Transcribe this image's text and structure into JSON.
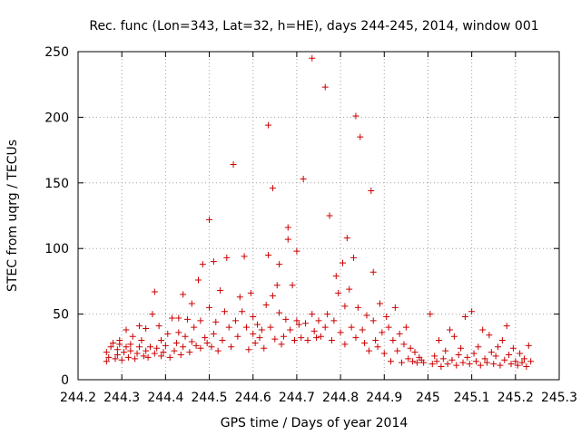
{
  "chart_data": {
    "type": "scatter",
    "title": "Rec. func (Lon=343, Lat=32, h=HE), days 244-245, 2014, window 001",
    "xlabel": "GPS time / Days of year 2014",
    "ylabel": "STEC from uqrg / TECUs",
    "xlim": [
      244.2,
      245.3
    ],
    "ylim": [
      0,
      250
    ],
    "xticks": [
      "244.2",
      "244.3",
      "244.4",
      "244.5",
      "244.6",
      "244.7",
      "244.8",
      "244.9",
      "245",
      "245.1",
      "245.2",
      "245.3"
    ],
    "yticks": [
      "0",
      "50",
      "100",
      "150",
      "200",
      "250"
    ],
    "grid": true,
    "legend": "none",
    "marker": "plus",
    "color": "#cc0000",
    "points": [
      [
        244.265,
        14
      ],
      [
        244.27,
        17
      ],
      [
        244.265,
        21
      ],
      [
        244.275,
        25
      ],
      [
        244.28,
        28
      ],
      [
        244.285,
        16
      ],
      [
        244.29,
        19
      ],
      [
        244.29,
        23
      ],
      [
        244.295,
        27
      ],
      [
        244.295,
        30
      ],
      [
        244.3,
        15
      ],
      [
        244.305,
        21
      ],
      [
        244.31,
        25
      ],
      [
        244.31,
        38
      ],
      [
        244.315,
        17
      ],
      [
        244.32,
        22
      ],
      [
        244.32,
        27
      ],
      [
        244.325,
        33
      ],
      [
        244.33,
        16
      ],
      [
        244.335,
        20
      ],
      [
        244.34,
        25
      ],
      [
        244.34,
        41
      ],
      [
        244.345,
        30
      ],
      [
        244.35,
        18
      ],
      [
        244.355,
        22
      ],
      [
        244.355,
        39
      ],
      [
        244.36,
        17
      ],
      [
        244.365,
        25
      ],
      [
        244.37,
        50
      ],
      [
        244.375,
        20
      ],
      [
        244.375,
        67
      ],
      [
        244.38,
        24
      ],
      [
        244.385,
        41
      ],
      [
        244.39,
        18
      ],
      [
        244.39,
        30
      ],
      [
        244.395,
        21
      ],
      [
        244.4,
        26
      ],
      [
        244.405,
        35
      ],
      [
        244.41,
        17
      ],
      [
        244.415,
        47
      ],
      [
        244.42,
        22
      ],
      [
        244.425,
        28
      ],
      [
        244.43,
        36
      ],
      [
        244.43,
        47
      ],
      [
        244.435,
        19
      ],
      [
        244.44,
        25
      ],
      [
        244.44,
        65
      ],
      [
        244.445,
        33
      ],
      [
        244.45,
        46
      ],
      [
        244.455,
        21
      ],
      [
        244.46,
        29
      ],
      [
        244.46,
        58
      ],
      [
        244.465,
        40
      ],
      [
        244.47,
        26
      ],
      [
        244.475,
        76
      ],
      [
        244.48,
        24
      ],
      [
        244.48,
        45
      ],
      [
        244.485,
        88
      ],
      [
        244.49,
        32
      ],
      [
        244.495,
        28
      ],
      [
        244.5,
        122
      ],
      [
        244.5,
        55
      ],
      [
        244.505,
        25
      ],
      [
        244.51,
        35
      ],
      [
        244.51,
        90
      ],
      [
        244.515,
        44
      ],
      [
        244.52,
        22
      ],
      [
        244.525,
        68
      ],
      [
        244.53,
        30
      ],
      [
        244.535,
        52
      ],
      [
        244.54,
        93
      ],
      [
        244.545,
        40
      ],
      [
        244.55,
        25
      ],
      [
        244.555,
        164
      ],
      [
        244.56,
        45
      ],
      [
        244.565,
        33
      ],
      [
        244.57,
        63
      ],
      [
        244.575,
        52
      ],
      [
        244.58,
        94
      ],
      [
        244.585,
        40
      ],
      [
        244.59,
        23
      ],
      [
        244.595,
        66
      ],
      [
        244.6,
        35
      ],
      [
        244.6,
        48
      ],
      [
        244.605,
        28
      ],
      [
        244.61,
        42
      ],
      [
        244.615,
        32
      ],
      [
        244.62,
        38
      ],
      [
        244.625,
        24
      ],
      [
        244.63,
        57
      ],
      [
        244.635,
        194
      ],
      [
        244.635,
        95
      ],
      [
        244.64,
        40
      ],
      [
        244.645,
        146
      ],
      [
        244.645,
        64
      ],
      [
        244.65,
        31
      ],
      [
        244.655,
        72
      ],
      [
        244.66,
        88
      ],
      [
        244.66,
        51
      ],
      [
        244.665,
        27
      ],
      [
        244.67,
        33
      ],
      [
        244.675,
        46
      ],
      [
        244.68,
        116
      ],
      [
        244.68,
        107
      ],
      [
        244.685,
        38
      ],
      [
        244.69,
        72
      ],
      [
        244.695,
        30
      ],
      [
        244.7,
        98
      ],
      [
        244.7,
        45
      ],
      [
        244.705,
        42
      ],
      [
        244.71,
        32
      ],
      [
        244.715,
        153
      ],
      [
        244.72,
        43
      ],
      [
        244.725,
        30
      ],
      [
        244.735,
        245
      ],
      [
        244.735,
        50
      ],
      [
        244.74,
        37
      ],
      [
        244.745,
        32
      ],
      [
        244.75,
        45
      ],
      [
        244.755,
        33
      ],
      [
        244.765,
        223
      ],
      [
        244.765,
        40
      ],
      [
        244.77,
        50
      ],
      [
        244.775,
        125
      ],
      [
        244.78,
        30
      ],
      [
        244.785,
        45
      ],
      [
        244.79,
        79
      ],
      [
        244.795,
        66
      ],
      [
        244.8,
        36
      ],
      [
        244.805,
        89
      ],
      [
        244.81,
        56
      ],
      [
        244.81,
        27
      ],
      [
        244.815,
        108
      ],
      [
        244.82,
        69
      ],
      [
        244.825,
        40
      ],
      [
        244.83,
        93
      ],
      [
        244.835,
        201
      ],
      [
        244.835,
        32
      ],
      [
        244.84,
        55
      ],
      [
        244.845,
        185
      ],
      [
        244.85,
        38
      ],
      [
        244.855,
        28
      ],
      [
        244.86,
        49
      ],
      [
        244.865,
        22
      ],
      [
        244.87,
        144
      ],
      [
        244.875,
        82
      ],
      [
        244.875,
        45
      ],
      [
        244.88,
        30
      ],
      [
        244.885,
        25
      ],
      [
        244.89,
        58
      ],
      [
        244.895,
        36
      ],
      [
        244.9,
        20
      ],
      [
        244.905,
        48
      ],
      [
        244.91,
        40
      ],
      [
        244.915,
        14
      ],
      [
        244.92,
        30
      ],
      [
        244.925,
        55
      ],
      [
        244.93,
        22
      ],
      [
        244.935,
        35
      ],
      [
        244.94,
        13
      ],
      [
        244.945,
        27
      ],
      [
        244.95,
        40
      ],
      [
        244.955,
        16
      ],
      [
        244.96,
        24
      ],
      [
        244.965,
        14
      ],
      [
        244.97,
        21
      ],
      [
        244.975,
        13
      ],
      [
        244.98,
        17
      ],
      [
        244.985,
        15
      ],
      [
        244.99,
        13
      ],
      [
        245.005,
        50
      ],
      [
        245.01,
        12
      ],
      [
        245.015,
        18
      ],
      [
        245.02,
        14
      ],
      [
        245.025,
        30
      ],
      [
        245.03,
        10
      ],
      [
        245.035,
        16
      ],
      [
        245.04,
        22
      ],
      [
        245.045,
        12
      ],
      [
        245.05,
        38
      ],
      [
        245.055,
        15
      ],
      [
        245.06,
        33
      ],
      [
        245.065,
        11
      ],
      [
        245.07,
        19
      ],
      [
        245.075,
        24
      ],
      [
        245.08,
        13
      ],
      [
        245.085,
        48
      ],
      [
        245.09,
        17
      ],
      [
        245.095,
        12
      ],
      [
        245.1,
        52
      ],
      [
        245.105,
        20
      ],
      [
        245.11,
        14
      ],
      [
        245.115,
        25
      ],
      [
        245.12,
        11
      ],
      [
        245.125,
        38
      ],
      [
        245.13,
        16
      ],
      [
        245.135,
        13
      ],
      [
        245.14,
        34
      ],
      [
        245.145,
        21
      ],
      [
        245.15,
        12
      ],
      [
        245.155,
        18
      ],
      [
        245.16,
        25
      ],
      [
        245.165,
        11
      ],
      [
        245.17,
        30
      ],
      [
        245.175,
        15
      ],
      [
        245.18,
        41
      ],
      [
        245.185,
        19
      ],
      [
        245.19,
        12
      ],
      [
        245.195,
        24
      ],
      [
        245.2,
        14
      ],
      [
        245.205,
        11
      ],
      [
        245.21,
        20
      ],
      [
        245.215,
        13
      ],
      [
        245.22,
        16
      ],
      [
        245.225,
        10
      ],
      [
        245.23,
        26
      ],
      [
        245.235,
        14
      ]
    ]
  }
}
